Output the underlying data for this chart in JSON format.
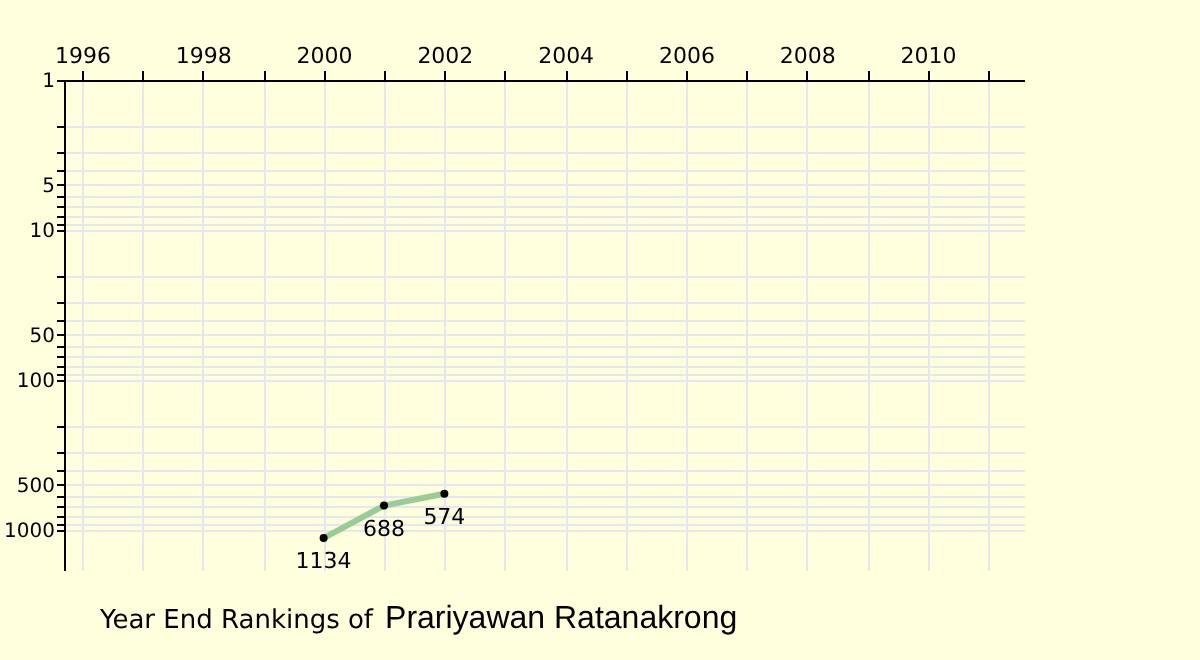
{
  "chart_data": {
    "type": "line",
    "title": "Year End Rankings of",
    "subtitle": "Prariyawan Ratanakrong",
    "x": [
      2000,
      2001,
      2002
    ],
    "series": [
      {
        "color": "#99cc99",
        "values": [
          1134,
          688,
          574
        ]
      }
    ],
    "data_labels": true,
    "marker": "circle",
    "log": "y",
    "grid": true,
    "xlim": [
      1995.7,
      2011.6
    ],
    "xticks": [
      1996,
      {
        "value": 1997,
        "label": null
      },
      1998,
      {
        "value": 1999,
        "label": null
      },
      2000,
      {
        "value": 2001,
        "label": null
      },
      2002,
      {
        "value": 2003,
        "label": null
      },
      2004,
      {
        "value": 2005,
        "label": null
      },
      2006,
      {
        "value": 2007,
        "label": null
      },
      2008,
      {
        "value": 2009,
        "label": null
      },
      2010,
      {
        "value": 2011,
        "label": null
      }
    ],
    "ylim": [
      1850,
      1
    ],
    "yticks": [
      1,
      {
        "value": 2,
        "label": null
      },
      {
        "value": 3,
        "label": null
      },
      {
        "value": 4,
        "label": null
      },
      5,
      {
        "value": 6,
        "label": null
      },
      {
        "value": 7,
        "label": null
      },
      {
        "value": 8,
        "label": null
      },
      {
        "value": 9,
        "label": null
      },
      10,
      {
        "value": 20,
        "label": null
      },
      {
        "value": 30,
        "label": null
      },
      {
        "value": 40,
        "label": null
      },
      50,
      {
        "value": 60,
        "label": null
      },
      {
        "value": 70,
        "label": null
      },
      {
        "value": 80,
        "label": null
      },
      {
        "value": 90,
        "label": null
      },
      100,
      {
        "value": 200,
        "label": null
      },
      {
        "value": 300,
        "label": null
      },
      {
        "value": 400,
        "label": null
      },
      500,
      {
        "value": 600,
        "label": null
      },
      {
        "value": 700,
        "label": null
      },
      {
        "value": 800,
        "label": null
      },
      {
        "value": 900,
        "label": null
      },
      1000
    ]
  }
}
